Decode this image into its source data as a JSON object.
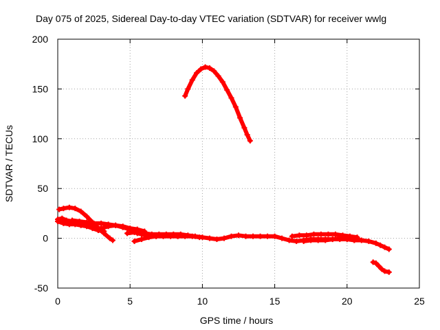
{
  "chart_data": {
    "type": "scatter",
    "title": "Day 075 of 2025, Sidereal Day-to-day VTEC variation (SDTVAR) for receiver wwlg",
    "xlabel": "GPS time / hours",
    "ylabel": "SDTVAR / TECUs",
    "xlim": [
      0,
      25
    ],
    "ylim": [
      -50,
      200
    ],
    "xticks": [
      0,
      5,
      10,
      15,
      20,
      25
    ],
    "yticks": [
      -50,
      0,
      50,
      100,
      150,
      200
    ],
    "grid": true,
    "legend": "none",
    "color": "#ff0000",
    "series": [
      {
        "name": "arc-high",
        "points": [
          [
            8.8,
            143
          ],
          [
            9.0,
            150
          ],
          [
            9.3,
            159
          ],
          [
            9.6,
            166
          ],
          [
            9.9,
            170
          ],
          [
            10.2,
            172
          ],
          [
            10.5,
            171
          ],
          [
            10.8,
            168
          ],
          [
            11.1,
            163
          ],
          [
            11.4,
            157
          ],
          [
            11.7,
            149
          ],
          [
            12.0,
            141
          ],
          [
            12.3,
            132
          ],
          [
            12.6,
            121
          ],
          [
            12.9,
            111
          ],
          [
            13.1,
            104
          ],
          [
            13.3,
            98
          ]
        ]
      },
      {
        "name": "arc-early-hump",
        "points": [
          [
            0.1,
            29
          ],
          [
            0.4,
            30
          ],
          [
            0.8,
            31
          ],
          [
            1.2,
            30
          ],
          [
            1.6,
            27
          ],
          [
            2.0,
            22
          ],
          [
            2.4,
            16
          ],
          [
            2.8,
            10
          ],
          [
            3.2,
            5
          ],
          [
            3.6,
            0
          ],
          [
            3.8,
            -2
          ]
        ]
      },
      {
        "name": "arc-early-a",
        "points": [
          [
            0.0,
            19
          ],
          [
            0.3,
            20
          ],
          [
            0.6,
            18
          ],
          [
            1.0,
            17
          ],
          [
            1.5,
            15
          ],
          [
            2.0,
            14
          ],
          [
            2.5,
            11
          ],
          [
            3.0,
            10
          ],
          [
            3.5,
            12
          ],
          [
            4.0,
            13
          ],
          [
            4.5,
            12
          ],
          [
            5.0,
            10
          ],
          [
            5.5,
            9
          ],
          [
            6.0,
            7
          ]
        ]
      },
      {
        "name": "arc-early-b",
        "points": [
          [
            0.0,
            17
          ],
          [
            0.4,
            15
          ],
          [
            0.8,
            14
          ],
          [
            1.2,
            14
          ],
          [
            1.6,
            13
          ],
          [
            2.0,
            12
          ],
          [
            2.4,
            10
          ],
          [
            2.8,
            8
          ],
          [
            3.2,
            7
          ]
        ]
      },
      {
        "name": "arc-early-c",
        "points": [
          [
            1.0,
            18
          ],
          [
            1.5,
            17
          ],
          [
            2.0,
            16
          ],
          [
            2.5,
            15
          ],
          [
            3.0,
            15
          ],
          [
            3.5,
            14
          ],
          [
            4.0,
            13
          ],
          [
            4.5,
            11
          ],
          [
            5.0,
            9
          ],
          [
            5.5,
            8
          ]
        ]
      },
      {
        "name": "arc-mid-main",
        "points": [
          [
            5.5,
            5
          ],
          [
            6.0,
            5
          ],
          [
            6.5,
            4
          ],
          [
            7.0,
            4
          ],
          [
            7.5,
            4
          ],
          [
            8.0,
            4
          ],
          [
            8.5,
            4
          ],
          [
            9.0,
            3
          ],
          [
            9.5,
            2
          ],
          [
            10.0,
            1
          ],
          [
            10.5,
            0
          ],
          [
            11.0,
            -1
          ],
          [
            11.5,
            0
          ],
          [
            12.0,
            2
          ],
          [
            12.5,
            3
          ],
          [
            13.0,
            2
          ],
          [
            13.5,
            2
          ],
          [
            14.0,
            2
          ],
          [
            14.5,
            2
          ],
          [
            15.0,
            2
          ],
          [
            15.5,
            0
          ],
          [
            16.0,
            -2
          ],
          [
            16.5,
            -3
          ],
          [
            17.0,
            -2
          ],
          [
            17.5,
            -1
          ],
          [
            18.0,
            -1
          ],
          [
            18.5,
            -1
          ],
          [
            19.0,
            -1
          ],
          [
            19.5,
            -1
          ],
          [
            20.0,
            -1
          ],
          [
            20.5,
            -2
          ]
        ]
      },
      {
        "name": "arc-mid-low",
        "points": [
          [
            5.3,
            -3
          ],
          [
            5.8,
            -1
          ],
          [
            6.3,
            1
          ],
          [
            6.8,
            2
          ],
          [
            7.3,
            3
          ],
          [
            7.8,
            3
          ],
          [
            8.3,
            2
          ]
        ]
      },
      {
        "name": "arc-mid-b",
        "points": [
          [
            4.8,
            5
          ],
          [
            5.3,
            6
          ],
          [
            5.8,
            4
          ],
          [
            6.3,
            3
          ],
          [
            6.8,
            2
          ],
          [
            7.3,
            2
          ],
          [
            7.8,
            2
          ],
          [
            8.3,
            2
          ],
          [
            8.8,
            2
          ],
          [
            9.3,
            2
          ],
          [
            9.8,
            1
          ]
        ]
      },
      {
        "name": "arc-late-a",
        "points": [
          [
            16.2,
            2
          ],
          [
            16.7,
            3
          ],
          [
            17.2,
            3
          ],
          [
            17.7,
            4
          ],
          [
            18.2,
            4
          ],
          [
            18.7,
            4
          ],
          [
            19.2,
            4
          ],
          [
            19.7,
            3
          ],
          [
            20.2,
            2
          ],
          [
            20.7,
            1
          ]
        ]
      },
      {
        "name": "arc-late-b",
        "points": [
          [
            17.0,
            -3
          ],
          [
            17.5,
            -2
          ],
          [
            18.0,
            -2
          ],
          [
            18.5,
            -2
          ],
          [
            19.0,
            -1
          ],
          [
            19.5,
            0
          ],
          [
            20.0,
            0
          ],
          [
            20.5,
            -1
          ],
          [
            21.0,
            -2
          ]
        ]
      },
      {
        "name": "arc-late-tail",
        "points": [
          [
            20.5,
            -2
          ],
          [
            21.0,
            -2
          ],
          [
            21.5,
            -3
          ],
          [
            22.0,
            -5
          ],
          [
            22.3,
            -7
          ],
          [
            22.6,
            -9
          ],
          [
            22.9,
            -11
          ]
        ]
      },
      {
        "name": "arc-late-neg",
        "points": [
          [
            21.8,
            -24
          ],
          [
            22.0,
            -25
          ],
          [
            22.2,
            -28
          ],
          [
            22.4,
            -31
          ],
          [
            22.6,
            -33
          ],
          [
            22.9,
            -34
          ]
        ]
      }
    ]
  }
}
